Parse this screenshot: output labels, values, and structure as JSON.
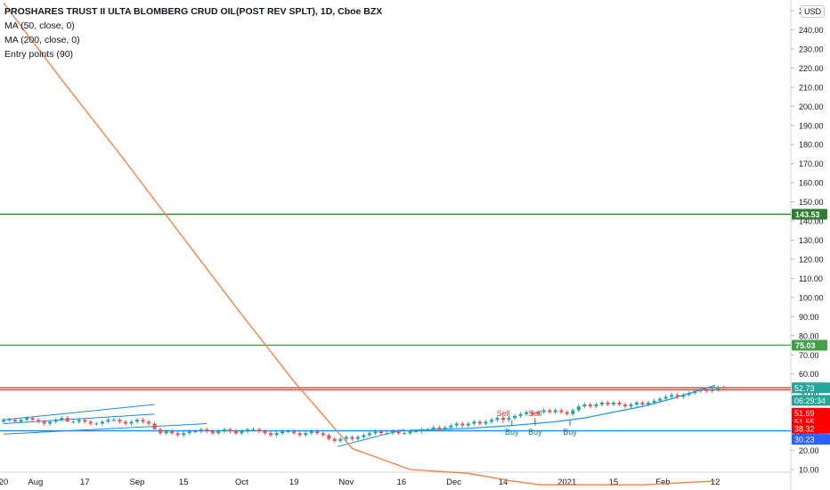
{
  "legend": {
    "title": "PROSHARES TRUST II ULTA BLOMBERG CRUD OIL(POST REV SPLT), 1D, Cboe BZX",
    "ma50": "MA (50, close, 0)",
    "ma200": "MA (200, close, 0)",
    "entry": "Entry points (90)"
  },
  "currency": "USD",
  "colors": {
    "up": "#26a69a",
    "down": "#ef5350",
    "ma50": "#2196f3",
    "ma200": "#f57c3a",
    "green_line": "#2e7d32",
    "light_green_line": "#43a047",
    "red_line": "#e53935",
    "blue_line": "#1e88e5",
    "trendline": "#1e88e5"
  },
  "chart_data": {
    "type": "candlestick",
    "y_axis": {
      "ticks": [
        10,
        20,
        30,
        40,
        50,
        60,
        70,
        80,
        90,
        100,
        110,
        120,
        130,
        140,
        150,
        160,
        170,
        180,
        190,
        200,
        210,
        220,
        230,
        240,
        250
      ],
      "labels": [
        "10.00",
        "20.00",
        "30.00",
        "40.00",
        "50.00",
        "60.00",
        "70.00",
        "80.00",
        "90.00",
        "100.00",
        "110.00",
        "120.00",
        "130.00",
        "140.00",
        "150.00",
        "160.00",
        "170.00",
        "180.00",
        "190.00",
        "200.00",
        "210.00",
        "220.00",
        "230.00",
        "240.00",
        "250.00"
      ]
    },
    "x_axis": {
      "labels": [
        "20",
        "Aug",
        "17",
        "Sep",
        "15",
        "Oct",
        "19",
        "Nov",
        "16",
        "Dec",
        "14",
        "2021",
        "15",
        "Feb",
        "12"
      ],
      "label_days": [
        0,
        11,
        28,
        46,
        62,
        82,
        100,
        118,
        137,
        155,
        172,
        194,
        210,
        227,
        245
      ],
      "range_days": [
        0,
        260
      ]
    },
    "horizontal_lines": [
      {
        "value": 143.53,
        "label": "143.53",
        "style": "green_line"
      },
      {
        "value": 75.03,
        "label": "75.03",
        "style": "light_green_line"
      },
      {
        "value": 52.73,
        "label": "52.73",
        "style": "red_line"
      },
      {
        "value": 51.69,
        "label": "51.69",
        "style": "red_line"
      },
      {
        "value": 30.23,
        "label": "30.23",
        "style": "blue_line"
      }
    ],
    "price_badges": [
      {
        "value": 52.73,
        "label": "52.73",
        "bg": "#26a69a"
      },
      {
        "value": 46.2,
        "label": "06:29:34",
        "bg": "#26a69a"
      },
      {
        "value": 39.5,
        "label": "51.69",
        "bg": "#ff0000"
      },
      {
        "value": 35.0,
        "label": "51.55",
        "bg": "#ff0000"
      },
      {
        "value": 31.5,
        "label": "38.32",
        "bg": "#ff0000"
      },
      {
        "value": 25.8,
        "label": "30.23",
        "bg": "#2962ff"
      }
    ],
    "ma200": {
      "x": [
        0,
        20,
        40,
        60,
        80,
        100,
        120,
        140,
        160,
        175,
        185,
        200,
        220,
        245
      ],
      "y": [
        254,
        214,
        175,
        135,
        95,
        56,
        21,
        10,
        8,
        4,
        2,
        2,
        2,
        4
      ]
    },
    "ma50": {
      "x": [
        140,
        160,
        175,
        190,
        200,
        210,
        220,
        230,
        245
      ],
      "y": [
        30.5,
        31.5,
        33,
        35,
        37,
        40,
        43,
        47,
        54
      ]
    },
    "trendlines": [
      {
        "x": [
          0,
          52
        ],
        "y": [
          36,
          44
        ]
      },
      {
        "x": [
          0,
          52
        ],
        "y": [
          34,
          39
        ]
      },
      {
        "x": [
          0,
          70
        ],
        "y": [
          28.5,
          34
        ]
      },
      {
        "x": [
          115,
          138
        ],
        "y": [
          22,
          31
        ]
      }
    ],
    "signals": [
      {
        "type": "Sell",
        "day": 172,
        "price": 38
      },
      {
        "type": "Sell",
        "day": 183,
        "price": 38
      },
      {
        "type": "Buy",
        "day": 175,
        "price": 32
      },
      {
        "type": "Buy",
        "day": 183,
        "price": 32
      },
      {
        "type": "Buy",
        "day": 195,
        "price": 32
      }
    ],
    "candles": [
      [
        0,
        35,
        37,
        34,
        36
      ],
      [
        2,
        36,
        37,
        35,
        36
      ],
      [
        4,
        36,
        37,
        35,
        35
      ],
      [
        6,
        35,
        37,
        34,
        36
      ],
      [
        8,
        36,
        38,
        35,
        37
      ],
      [
        10,
        37,
        38,
        35,
        36
      ],
      [
        12,
        36,
        37,
        34,
        35
      ],
      [
        14,
        35,
        36,
        33,
        34
      ],
      [
        16,
        34,
        36,
        33,
        35
      ],
      [
        18,
        35,
        37,
        34,
        36
      ],
      [
        20,
        36,
        38,
        35,
        37
      ],
      [
        22,
        37,
        38,
        35,
        35
      ],
      [
        24,
        35,
        36,
        34,
        35
      ],
      [
        26,
        35,
        37,
        34,
        36
      ],
      [
        28,
        36,
        37,
        34,
        35
      ],
      [
        30,
        35,
        36,
        33,
        34
      ],
      [
        32,
        34,
        35,
        33,
        34
      ],
      [
        34,
        34,
        36,
        33,
        35
      ],
      [
        36,
        35,
        37,
        34,
        36
      ],
      [
        38,
        36,
        37,
        35,
        36
      ],
      [
        40,
        36,
        37,
        34,
        35
      ],
      [
        42,
        35,
        36,
        33,
        34
      ],
      [
        44,
        34,
        36,
        33,
        35
      ],
      [
        46,
        35,
        37,
        34,
        36
      ],
      [
        48,
        36,
        37,
        34,
        35
      ],
      [
        50,
        35,
        36,
        33,
        34
      ],
      [
        52,
        34,
        35,
        31,
        31
      ],
      [
        54,
        31,
        32,
        28,
        29
      ],
      [
        56,
        29,
        31,
        28,
        30
      ],
      [
        58,
        30,
        31,
        28,
        29
      ],
      [
        60,
        29,
        30,
        27,
        28
      ],
      [
        62,
        28,
        30,
        27,
        29
      ],
      [
        64,
        29,
        31,
        28,
        30
      ],
      [
        66,
        30,
        31,
        29,
        30
      ],
      [
        68,
        30,
        32,
        29,
        31
      ],
      [
        70,
        31,
        32,
        29,
        30
      ],
      [
        72,
        30,
        31,
        28,
        29
      ],
      [
        74,
        29,
        31,
        28,
        30
      ],
      [
        76,
        30,
        32,
        29,
        31
      ],
      [
        78,
        31,
        32,
        29,
        30
      ],
      [
        80,
        30,
        31,
        28,
        29
      ],
      [
        82,
        29,
        31,
        28,
        30
      ],
      [
        84,
        30,
        32,
        29,
        31
      ],
      [
        86,
        31,
        32,
        30,
        31
      ],
      [
        88,
        31,
        32,
        29,
        30
      ],
      [
        90,
        30,
        31,
        28,
        29
      ],
      [
        92,
        29,
        30,
        27,
        28
      ],
      [
        94,
        28,
        30,
        27,
        29
      ],
      [
        96,
        29,
        31,
        28,
        30
      ],
      [
        98,
        30,
        31,
        29,
        30
      ],
      [
        100,
        30,
        31,
        28,
        29
      ],
      [
        102,
        29,
        30,
        27,
        28
      ],
      [
        104,
        28,
        30,
        27,
        29
      ],
      [
        106,
        29,
        31,
        28,
        30
      ],
      [
        108,
        30,
        31,
        28,
        29
      ],
      [
        110,
        29,
        30,
        27,
        28
      ],
      [
        112,
        28,
        29,
        25,
        26
      ],
      [
        114,
        26,
        27,
        24,
        25
      ],
      [
        116,
        25,
        27,
        24,
        26
      ],
      [
        118,
        26,
        28,
        25,
        27
      ],
      [
        120,
        27,
        28,
        25,
        26
      ],
      [
        122,
        26,
        28,
        25,
        27
      ],
      [
        124,
        27,
        29,
        26,
        28
      ],
      [
        126,
        28,
        30,
        27,
        29
      ],
      [
        128,
        29,
        31,
        28,
        30
      ],
      [
        130,
        30,
        31,
        28,
        29
      ],
      [
        132,
        29,
        30,
        28,
        29
      ],
      [
        134,
        29,
        31,
        28,
        30
      ],
      [
        136,
        30,
        31,
        28,
        29
      ],
      [
        138,
        29,
        30,
        28,
        29
      ],
      [
        140,
        29,
        31,
        28,
        30
      ],
      [
        142,
        30,
        31,
        29,
        30
      ],
      [
        144,
        30,
        32,
        29,
        31
      ],
      [
        146,
        31,
        32,
        30,
        31
      ],
      [
        148,
        31,
        33,
        30,
        32
      ],
      [
        150,
        32,
        33,
        30,
        31
      ],
      [
        152,
        31,
        33,
        30,
        32
      ],
      [
        154,
        32,
        34,
        31,
        33
      ],
      [
        156,
        33,
        35,
        32,
        34
      ],
      [
        158,
        34,
        35,
        32,
        33
      ],
      [
        160,
        33,
        35,
        32,
        34
      ],
      [
        162,
        34,
        36,
        33,
        35
      ],
      [
        164,
        35,
        36,
        33,
        34
      ],
      [
        166,
        34,
        36,
        33,
        35
      ],
      [
        168,
        35,
        37,
        34,
        36
      ],
      [
        170,
        36,
        38,
        35,
        37
      ],
      [
        172,
        37,
        38,
        35,
        36
      ],
      [
        174,
        36,
        38,
        35,
        37
      ],
      [
        176,
        37,
        39,
        36,
        38
      ],
      [
        178,
        38,
        40,
        37,
        39
      ],
      [
        180,
        39,
        41,
        38,
        40
      ],
      [
        182,
        40,
        41,
        38,
        39
      ],
      [
        184,
        39,
        41,
        38,
        40
      ],
      [
        186,
        40,
        42,
        39,
        41
      ],
      [
        188,
        41,
        42,
        39,
        40
      ],
      [
        190,
        40,
        42,
        39,
        41
      ],
      [
        192,
        41,
        42,
        39,
        40
      ],
      [
        194,
        40,
        41,
        38,
        39
      ],
      [
        196,
        39,
        42,
        38,
        41
      ],
      [
        198,
        41,
        44,
        40,
        43
      ],
      [
        200,
        43,
        45,
        42,
        44
      ],
      [
        202,
        44,
        45,
        42,
        43
      ],
      [
        204,
        43,
        45,
        42,
        44
      ],
      [
        206,
        44,
        46,
        43,
        45
      ],
      [
        208,
        45,
        46,
        43,
        44
      ],
      [
        210,
        44,
        46,
        43,
        45
      ],
      [
        212,
        45,
        46,
        43,
        44
      ],
      [
        214,
        44,
        45,
        42,
        43
      ],
      [
        216,
        43,
        45,
        42,
        44
      ],
      [
        218,
        44,
        46,
        43,
        45
      ],
      [
        220,
        45,
        46,
        43,
        44
      ],
      [
        222,
        44,
        46,
        43,
        45
      ],
      [
        224,
        45,
        47,
        44,
        46
      ],
      [
        226,
        46,
        48,
        45,
        47
      ],
      [
        228,
        47,
        49,
        46,
        48
      ],
      [
        230,
        48,
        50,
        47,
        49
      ],
      [
        232,
        49,
        50,
        47,
        48
      ],
      [
        234,
        48,
        50,
        47,
        49
      ],
      [
        236,
        49,
        51,
        48,
        50
      ],
      [
        238,
        50,
        52,
        49,
        51
      ],
      [
        240,
        51,
        53,
        50,
        52
      ],
      [
        242,
        52,
        53,
        50,
        51
      ],
      [
        244,
        51,
        53,
        50,
        52
      ],
      [
        246,
        52,
        54,
        51,
        53
      ],
      [
        248,
        53,
        54,
        52,
        52.73
      ]
    ]
  }
}
